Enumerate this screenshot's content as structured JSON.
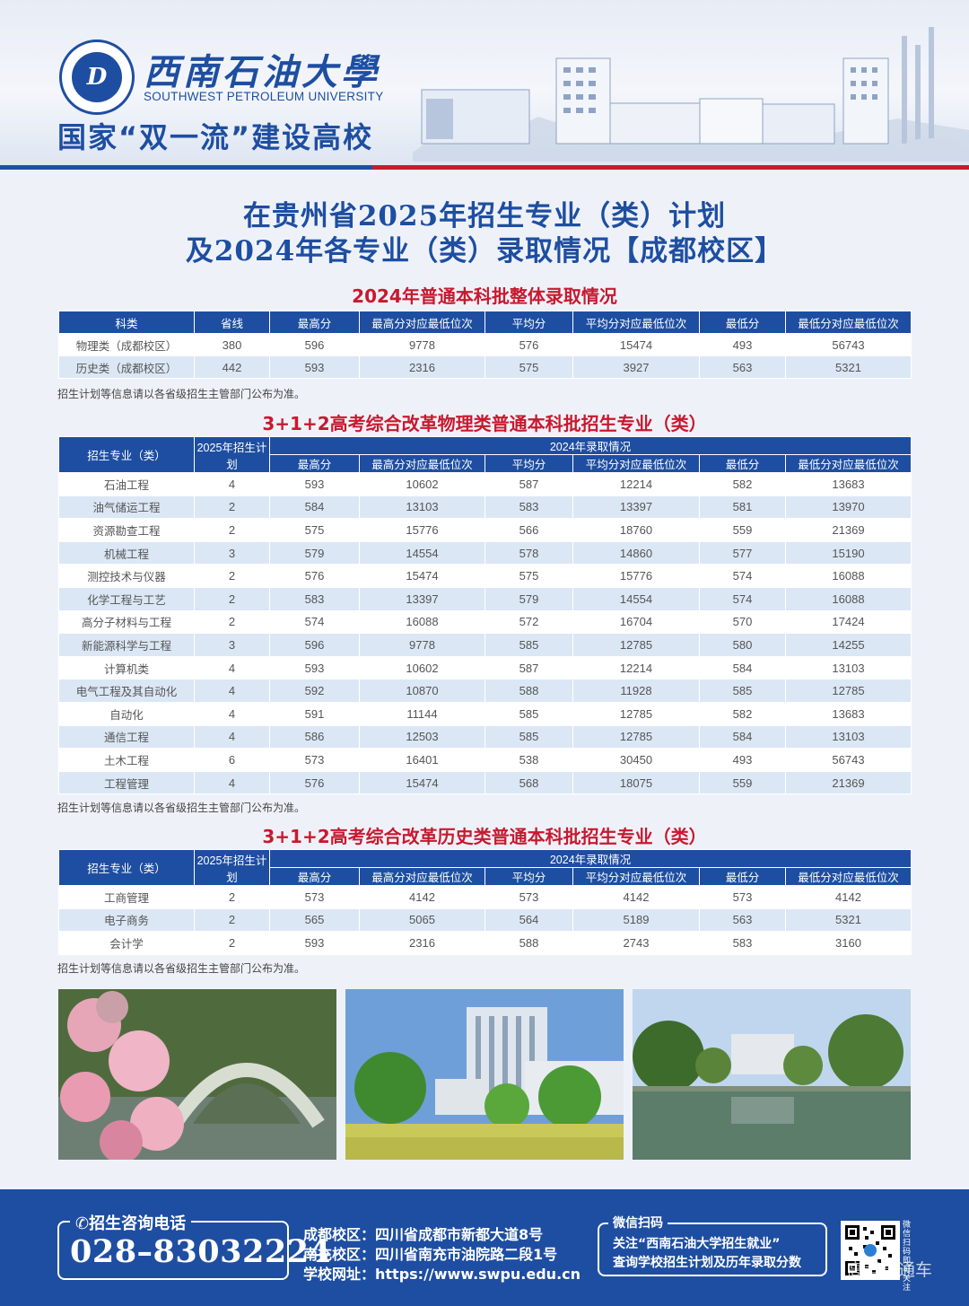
{
  "header": {
    "logo_mark": "D",
    "university_cn": "西南石油大學",
    "university_en": "SOUTHWEST PETROLEUM UNIVERSITY",
    "slogan": "国家“双一流”建设高校",
    "brand_blue": "#1e4ea1",
    "brand_red": "#c8192f"
  },
  "title": {
    "line1": "在贵州省2025年招生专业（类）计划",
    "line2": "及2024年各专业（类）录取情况【成都校区】"
  },
  "overall": {
    "section_title": "2024年普通本科批整体录取情况",
    "headers": [
      "科类",
      "省线",
      "最高分",
      "最高分对应最低位次",
      "平均分",
      "平均分对应最低位次",
      "最低分",
      "最低分对应最低位次"
    ],
    "rows": [
      [
        "物理类（成都校区）",
        "380",
        "596",
        "9778",
        "576",
        "15474",
        "493",
        "56743"
      ],
      [
        "历史类（成都校区）",
        "442",
        "593",
        "2316",
        "575",
        "3927",
        "563",
        "5321"
      ]
    ],
    "note": "招生计划等信息请以各省级招生主管部门公布为准。"
  },
  "physics": {
    "section_title": "3+1+2高考综合改革物理类普通本科批招生专业（类）",
    "header_major": "招生专业（类）",
    "header_plan": "2025年招生计划",
    "header_group": "2024年录取情况",
    "subheaders": [
      "最高分",
      "最高分对应最低位次",
      "平均分",
      "平均分对应最低位次",
      "最低分",
      "最低分对应最低位次"
    ],
    "rows": [
      [
        "石油工程",
        "4",
        "593",
        "10602",
        "587",
        "12214",
        "582",
        "13683"
      ],
      [
        "油气储运工程",
        "2",
        "584",
        "13103",
        "583",
        "13397",
        "581",
        "13970"
      ],
      [
        "资源勘查工程",
        "2",
        "575",
        "15776",
        "566",
        "18760",
        "559",
        "21369"
      ],
      [
        "机械工程",
        "3",
        "579",
        "14554",
        "578",
        "14860",
        "577",
        "15190"
      ],
      [
        "测控技术与仪器",
        "2",
        "576",
        "15474",
        "575",
        "15776",
        "574",
        "16088"
      ],
      [
        "化学工程与工艺",
        "2",
        "583",
        "13397",
        "579",
        "14554",
        "574",
        "16088"
      ],
      [
        "高分子材料与工程",
        "2",
        "574",
        "16088",
        "572",
        "16704",
        "570",
        "17424"
      ],
      [
        "新能源科学与工程",
        "3",
        "596",
        "9778",
        "585",
        "12785",
        "580",
        "14255"
      ],
      [
        "计算机类",
        "4",
        "593",
        "10602",
        "587",
        "12214",
        "584",
        "13103"
      ],
      [
        "电气工程及其自动化",
        "4",
        "592",
        "10870",
        "588",
        "11928",
        "585",
        "12785"
      ],
      [
        "自动化",
        "4",
        "591",
        "11144",
        "585",
        "12785",
        "582",
        "13683"
      ],
      [
        "通信工程",
        "4",
        "586",
        "12503",
        "585",
        "12785",
        "584",
        "13103"
      ],
      [
        "土木工程",
        "6",
        "573",
        "16401",
        "538",
        "30450",
        "493",
        "56743"
      ],
      [
        "工程管理",
        "4",
        "576",
        "15474",
        "568",
        "18075",
        "559",
        "21369"
      ]
    ],
    "note": "招生计划等信息请以各省级招生主管部门公布为准。"
  },
  "history": {
    "section_title": "3+1+2高考综合改革历史类普通本科批招生专业（类）",
    "header_major": "招生专业（类）",
    "header_plan": "2025年招生计划",
    "header_group": "2024年录取情况",
    "subheaders": [
      "最高分",
      "最高分对应最低位次",
      "平均分",
      "平均分对应最低位次",
      "最低分",
      "最低分对应最低位次"
    ],
    "rows": [
      [
        "工商管理",
        "2",
        "573",
        "4142",
        "573",
        "4142",
        "573",
        "4142"
      ],
      [
        "电子商务",
        "2",
        "565",
        "5065",
        "564",
        "5189",
        "563",
        "5321"
      ],
      [
        "会计学",
        "2",
        "593",
        "2316",
        "588",
        "2743",
        "583",
        "3160"
      ]
    ],
    "note": "招生计划等信息请以各省级招生主管部门公布为准。"
  },
  "footer": {
    "phone_label": "招生咨询电话",
    "phone_number": "028–83032224",
    "address_lines": [
      "成都校区：四川省成都市新都大道8号",
      "南充校区：四川省南充市油院路二段1号",
      "学校网址：https://www.swpu.edu.cn"
    ],
    "wechat_label": "微信扫码",
    "wechat_line1": "关注“西南石油大学招生就业”",
    "wechat_line2": "查询学校招生计划及历年录取分数",
    "qr_side_text": "微信扫码即可关注",
    "watermark": "高考直通车"
  }
}
